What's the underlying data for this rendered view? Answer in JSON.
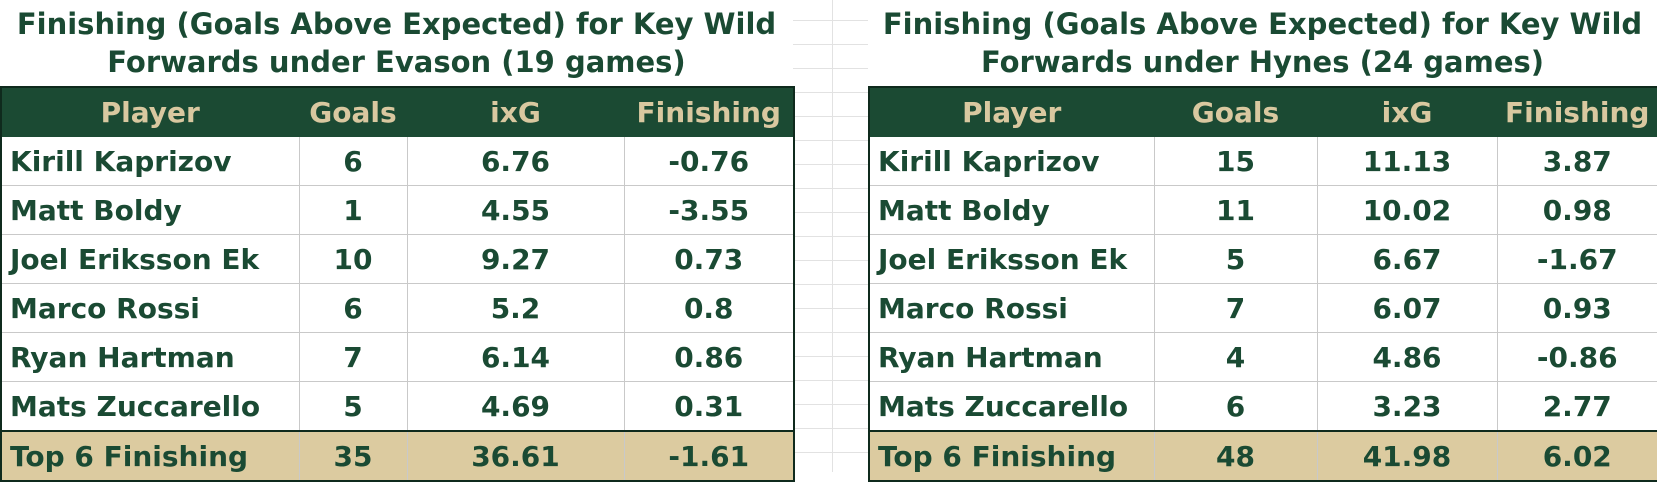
{
  "headers": [
    "Player",
    "Goals",
    "ixG",
    "Finishing"
  ],
  "tables": [
    {
      "title_line1": "Finishing (Goals Above Expected) for Key Wild",
      "title_line2": "Forwards under Evason (19 games)",
      "rows": [
        [
          "Kirill Kaprizov",
          "6",
          "6.76",
          "-0.76"
        ],
        [
          "Matt Boldy",
          "1",
          "4.55",
          "-3.55"
        ],
        [
          "Joel Eriksson Ek",
          "10",
          "9.27",
          "0.73"
        ],
        [
          "Marco Rossi",
          "6",
          "5.2",
          "0.8"
        ],
        [
          "Ryan Hartman",
          "7",
          "6.14",
          "0.86"
        ],
        [
          "Mats Zuccarello",
          "5",
          "4.69",
          "0.31"
        ]
      ],
      "total": [
        "Top 6 Finishing",
        "35",
        "36.61",
        "-1.61"
      ]
    },
    {
      "title_line1": "Finishing (Goals Above Expected) for Key Wild",
      "title_line2": "Forwards under Hynes (24 games)",
      "rows": [
        [
          "Kirill Kaprizov",
          "15",
          "11.13",
          "3.87"
        ],
        [
          "Matt Boldy",
          "11",
          "10.02",
          "0.98"
        ],
        [
          "Joel Eriksson Ek",
          "5",
          "6.67",
          "-1.67"
        ],
        [
          "Marco Rossi",
          "7",
          "6.07",
          "0.93"
        ],
        [
          "Ryan Hartman",
          "4",
          "4.86",
          "-0.86"
        ],
        [
          "Mats Zuccarello",
          "6",
          "3.23",
          "2.77"
        ]
      ],
      "total": [
        "Top 6 Finishing",
        "48",
        "41.98",
        "6.02"
      ]
    }
  ],
  "colors": {
    "header_bg": "#1b4a33",
    "header_text": "#d9c8a0",
    "body_text": "#1a4a33",
    "total_bg": "#dccba0"
  }
}
